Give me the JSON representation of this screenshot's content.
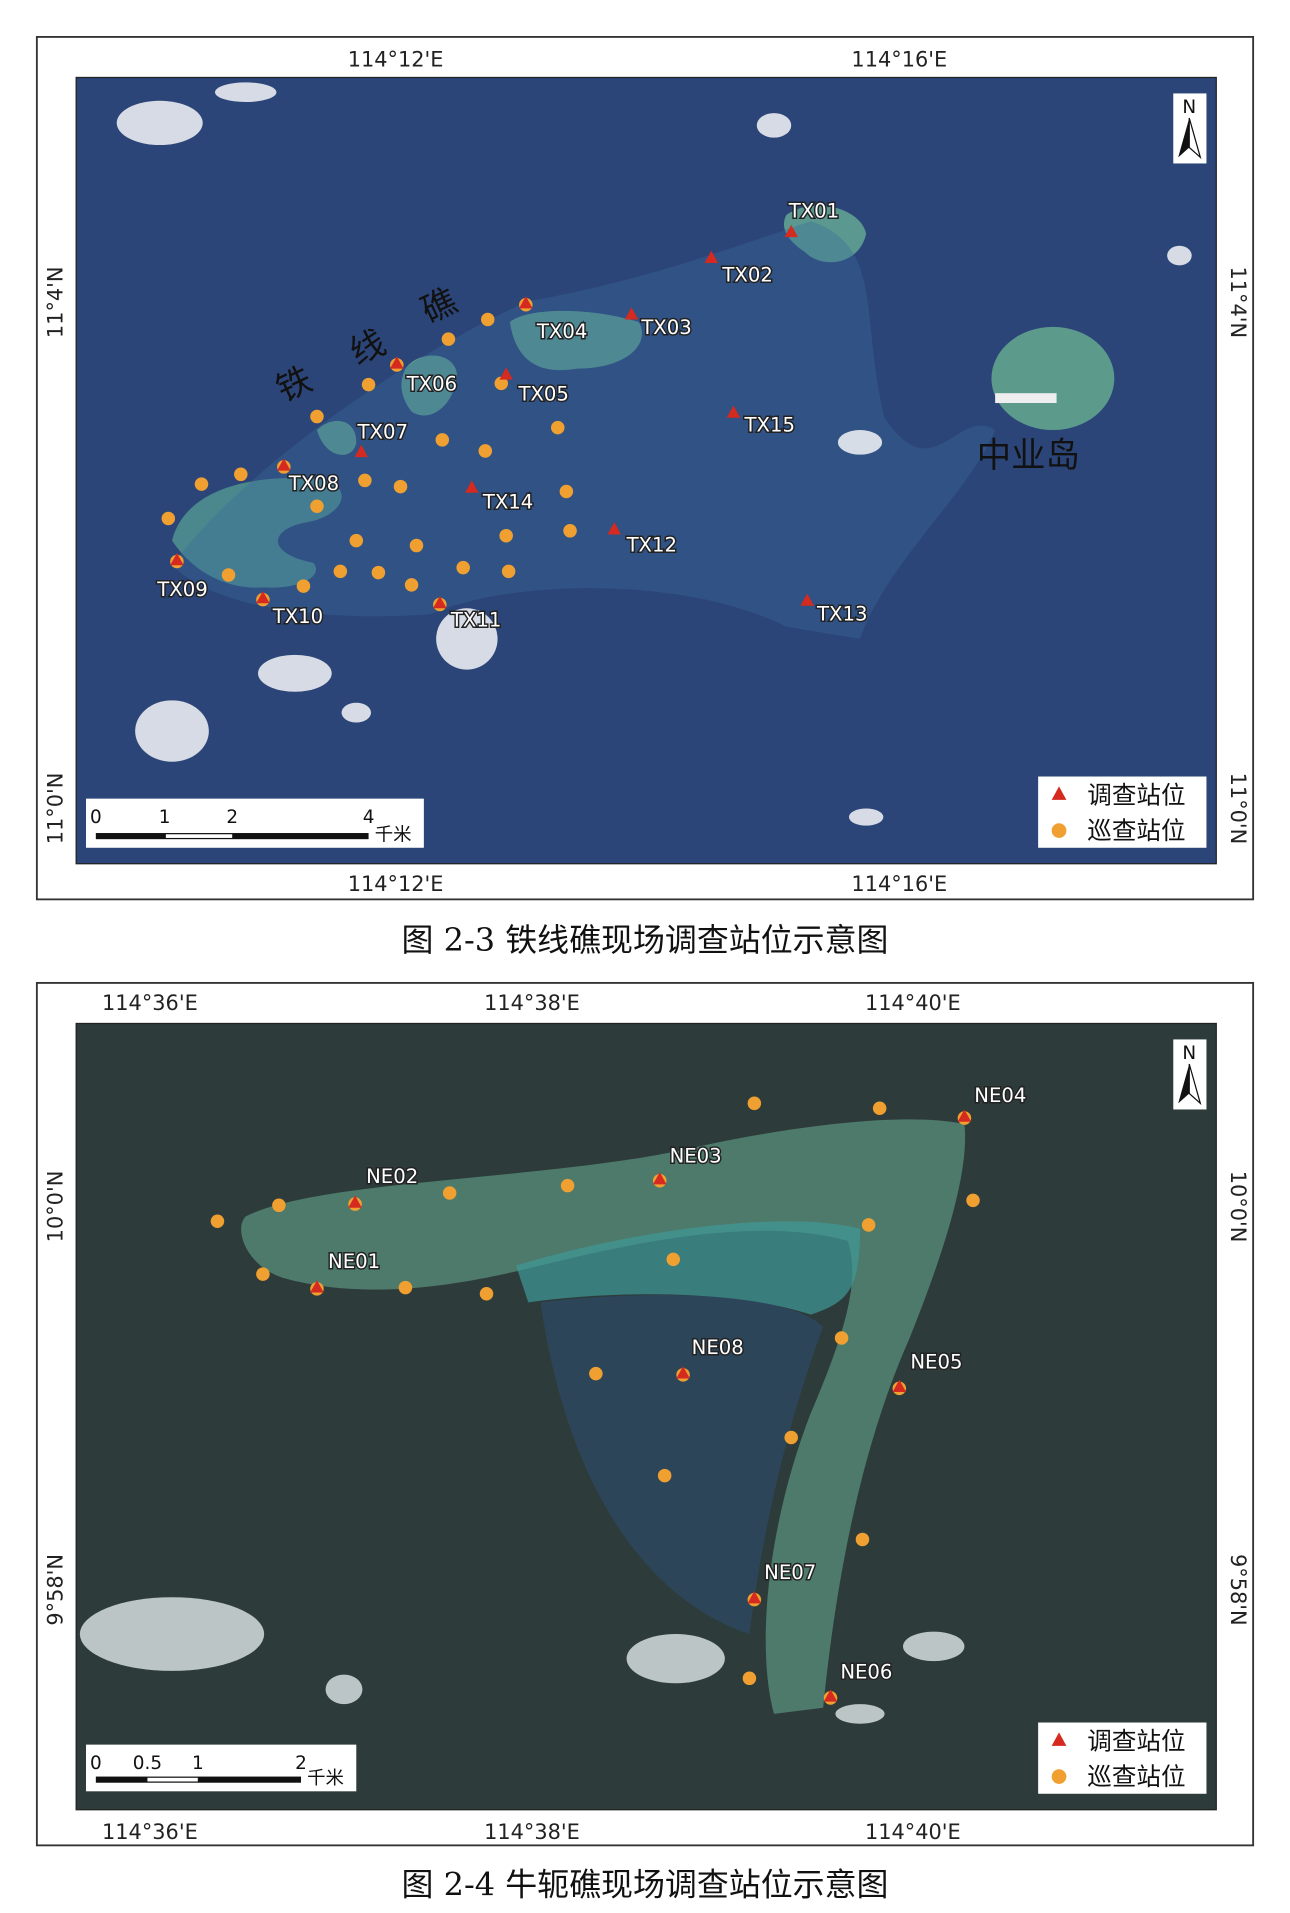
{
  "colors": {
    "survey_station": "#d42a20",
    "patrol_station": "#f0a030",
    "sea_map1": "#2c4578",
    "sea_map2": "#2e3b3b"
  },
  "map1": {
    "caption": "图 2-3  铁线礁现场调查站位示意图",
    "lon_labels": [
      "114°12'E",
      "114°16'E"
    ],
    "lat_labels": [
      "11°4'N",
      "11°0'N"
    ],
    "place_names": {
      "reef_chars": [
        "铁",
        "线",
        "礁"
      ],
      "island": "中业岛"
    },
    "north": "N",
    "scale": {
      "ticks": [
        "0",
        "1",
        "2",
        "4"
      ],
      "unit": "千米"
    },
    "legend": {
      "survey": "调查站位",
      "patrol": "巡查站位"
    },
    "stations": [
      "TX01",
      "TX02",
      "TX03",
      "TX04",
      "TX05",
      "TX06",
      "TX07",
      "TX08",
      "TX09",
      "TX10",
      "TX11",
      "TX12",
      "TX13",
      "TX14",
      "TX15"
    ]
  },
  "map2": {
    "caption": "图 2-4  牛轭礁现场调查站位示意图",
    "lon_labels": [
      "114°36'E",
      "114°38'E",
      "114°40'E"
    ],
    "lat_labels": [
      "10°0'N",
      "9°58'N"
    ],
    "north": "N",
    "scale": {
      "ticks": [
        "0",
        "0.5",
        "1",
        "2"
      ],
      "unit": "千米"
    },
    "legend": {
      "survey": "调查站位",
      "patrol": "巡查站位"
    },
    "stations": [
      "NE01",
      "NE02",
      "NE03",
      "NE04",
      "NE05",
      "NE06",
      "NE07",
      "NE08"
    ]
  }
}
